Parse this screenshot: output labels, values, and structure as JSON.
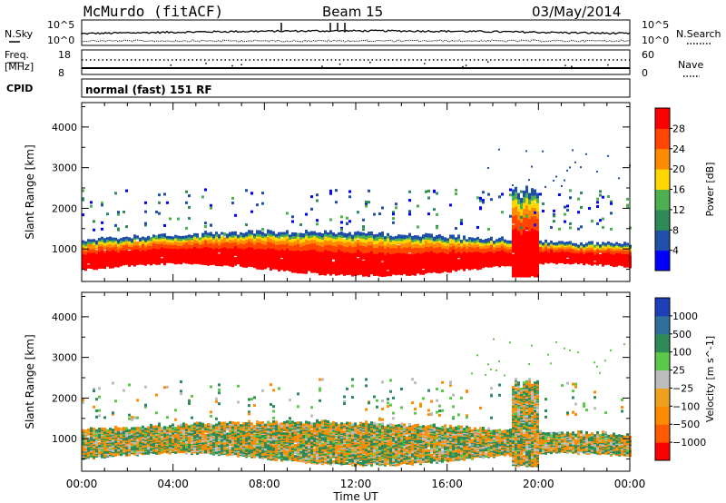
{
  "header": {
    "station": "McMurdo (fitACF)",
    "beam": "Beam 15",
    "date": "03/May/2014"
  },
  "top_panels": {
    "nsky_label": "N.Sky",
    "nsky_ticks": [
      "10^5",
      "10^0"
    ],
    "nsearch_label": "N.Search",
    "nsearch_ticks": [
      "10^5",
      "10^0"
    ],
    "freq_label_1": "Freq.",
    "freq_label_2": "[MHz]",
    "freq_ticks": [
      "18",
      "8"
    ],
    "nave_label": "Nave",
    "nave_ticks": [
      "60",
      "0"
    ],
    "cpid_label": "CPID",
    "cpid_text": "normal (fast) 151 RF"
  },
  "colors": {
    "power_scale": [
      "#0000ff",
      "#1f4fa8",
      "#2e8b57",
      "#4caf50",
      "#ffd700",
      "#ff8c00",
      "#ff4500",
      "#ff0000"
    ],
    "velocity_scale": [
      "#1f3fb8",
      "#2e6f9e",
      "#2e8b57",
      "#5cc84a",
      "#bdbdbd",
      "#f0a020",
      "#ff8c00",
      "#ff5a00",
      "#ff0000"
    ]
  },
  "chart_data": [
    {
      "type": "heatmap",
      "title": "",
      "xlabel": "Time UT",
      "ylabel": "Slant Range [km]",
      "x_ticks": [
        "00:00",
        "04:00",
        "08:00",
        "12:00",
        "16:00",
        "20:00",
        "00:00"
      ],
      "xlim_hours": [
        0,
        24
      ],
      "y_ticks": [
        1000,
        2000,
        3000,
        4000
      ],
      "ylim": [
        200,
        4600
      ],
      "colorbar_label": "Power [dB]",
      "colorbar_ticks": [
        4,
        8,
        12,
        16,
        20,
        24,
        28
      ],
      "colorbar_range": [
        0,
        32
      ],
      "dense_layer_range_km": [
        400,
        1300
      ],
      "dense_layer_values_db": [
        28,
        24,
        20,
        16,
        12,
        8
      ],
      "grid": false
    },
    {
      "type": "heatmap",
      "title": "",
      "xlabel": "Time UT",
      "ylabel": "Slant Range [km]",
      "x_ticks": [
        "00:00",
        "04:00",
        "08:00",
        "12:00",
        "16:00",
        "20:00",
        "00:00"
      ],
      "xlim_hours": [
        0,
        24
      ],
      "y_ticks": [
        1000,
        2000,
        3000,
        4000
      ],
      "ylim": [
        200,
        4600
      ],
      "colorbar_label": "Velocity [m s^-1]",
      "colorbar_ticks": [
        "1000",
        "500",
        "100",
        "25",
        "−25",
        "−100",
        "−500",
        "−1000"
      ],
      "grid": false
    }
  ]
}
